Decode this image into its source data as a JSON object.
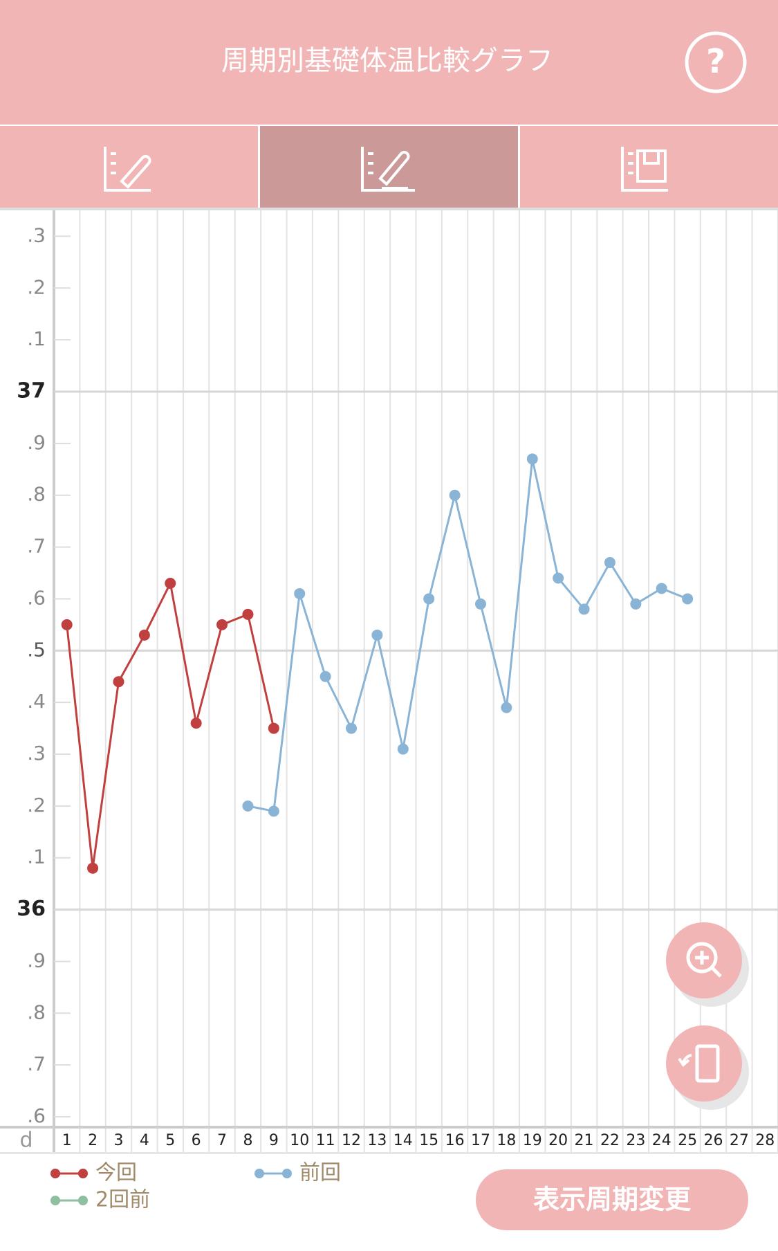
{
  "header": {
    "title": "周期別基礎体温比較グラフ",
    "help": "?"
  },
  "chart_data": {
    "type": "line",
    "x_label": "d",
    "categories": [
      "1",
      "2",
      "3",
      "4",
      "5",
      "6",
      "7",
      "8",
      "9",
      "10",
      "11",
      "12",
      "13",
      "14",
      "15",
      "16",
      "17",
      "18",
      "19",
      "20",
      "21",
      "22",
      "23",
      "24",
      "25",
      "26",
      "27",
      "28"
    ],
    "series": [
      {
        "name": "今回",
        "color": "#c0403f",
        "values": [
          36.55,
          36.08,
          36.44,
          36.53,
          36.63,
          36.36,
          36.55,
          36.57,
          36.35,
          null,
          null,
          null,
          null,
          null,
          null,
          null,
          null,
          null,
          null,
          null,
          null,
          null,
          null,
          null,
          null,
          null,
          null,
          null
        ]
      },
      {
        "name": "前回",
        "color": "#8ab4d6",
        "values": [
          null,
          null,
          null,
          null,
          null,
          null,
          null,
          36.2,
          36.19,
          36.61,
          36.45,
          36.35,
          36.53,
          36.31,
          36.6,
          36.8,
          36.59,
          36.39,
          36.87,
          36.64,
          36.58,
          36.67,
          36.59,
          36.62,
          36.6,
          null,
          null,
          null
        ]
      },
      {
        "name": "2回前",
        "color": "#8fbfa0",
        "values": [
          null,
          null,
          null,
          null,
          null,
          null,
          null,
          null,
          null,
          null,
          null,
          null,
          null,
          null,
          null,
          null,
          null,
          null,
          null,
          null,
          null,
          null,
          null,
          null,
          null,
          null,
          null,
          null
        ]
      }
    ],
    "ylim": [
      35.58,
      37.35
    ],
    "yticks": [
      {
        "value": 35.6,
        "label": ".6"
      },
      {
        "value": 35.7,
        "label": ".7"
      },
      {
        "value": 35.8,
        "label": ".8"
      },
      {
        "value": 35.9,
        "label": ".9"
      },
      36,
      {
        "value": 36.1,
        "label": ".1"
      },
      {
        "value": 36.2,
        "label": ".2"
      },
      {
        "value": 36.3,
        "label": ".3"
      },
      {
        "value": 36.4,
        "label": ".4"
      },
      {
        "value": 36.5,
        "label": ".5"
      },
      {
        "value": 36.6,
        "label": ".6"
      },
      {
        "value": 36.7,
        "label": ".7"
      },
      {
        "value": 36.8,
        "label": ".8"
      },
      {
        "value": 36.9,
        "label": ".9"
      },
      37,
      {
        "value": 37.1,
        "label": ".1"
      },
      {
        "value": 37.2,
        "label": ".2"
      },
      {
        "value": 37.3,
        "label": ".3"
      }
    ]
  },
  "button": {
    "label": "表示周期変更"
  }
}
